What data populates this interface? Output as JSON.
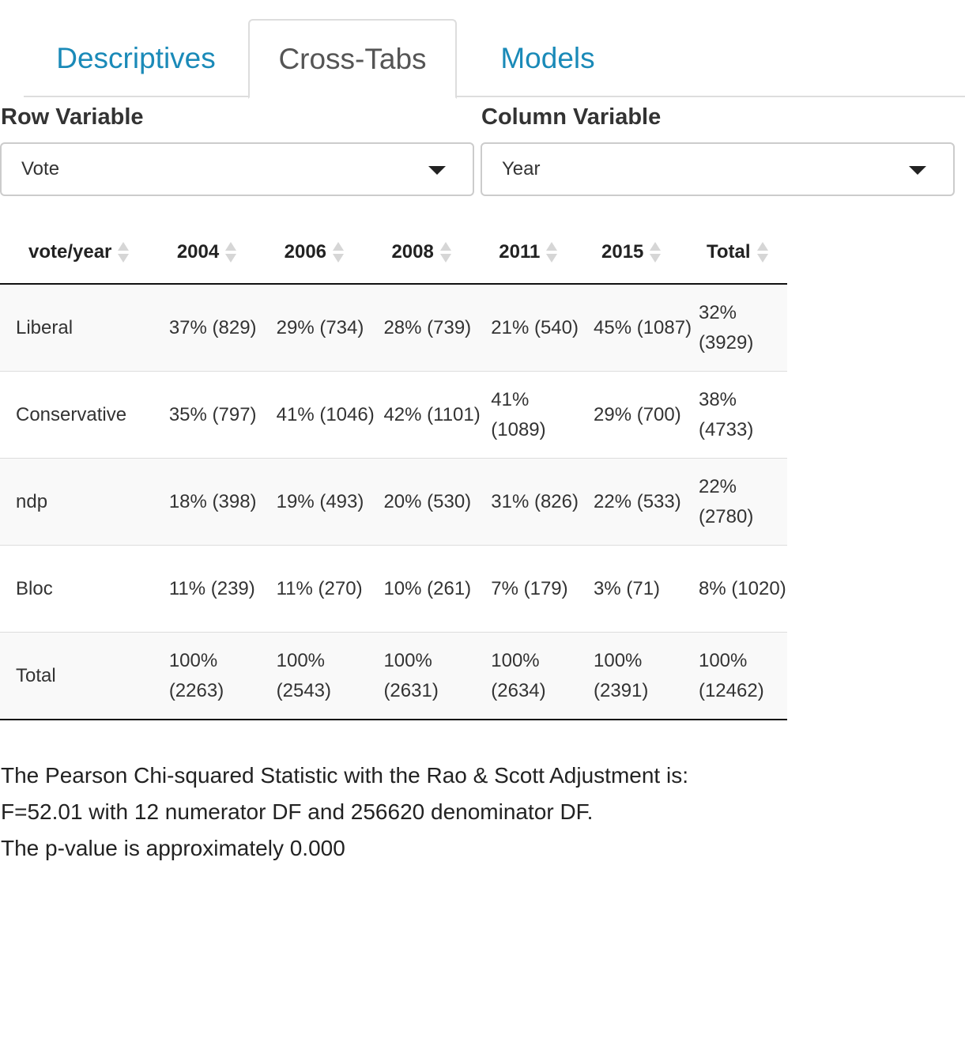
{
  "tabs": [
    {
      "label": "Descriptives",
      "active": false
    },
    {
      "label": "Cross-Tabs",
      "active": true
    },
    {
      "label": "Models",
      "active": false
    }
  ],
  "row_variable": {
    "label": "Row Variable",
    "value": "Vote"
  },
  "column_variable": {
    "label": "Column Variable",
    "value": "Year"
  },
  "table": {
    "headers": [
      "vote/year",
      "2004",
      "2006",
      "2008",
      "2011",
      "2015",
      "Total"
    ],
    "rows": [
      {
        "name": "Liberal",
        "cells": [
          "37% (829)",
          "29% (734)",
          "28% (739)",
          "21% (540)",
          "45% (1087)",
          "32% (3929)"
        ]
      },
      {
        "name": "Conservative",
        "cells": [
          "35% (797)",
          "41% (1046)",
          "42% (1101)",
          "41% (1089)",
          "29% (700)",
          "38% (4733)"
        ]
      },
      {
        "name": "ndp",
        "cells": [
          "18% (398)",
          "19% (493)",
          "20% (530)",
          "31% (826)",
          "22% (533)",
          "22% (2780)"
        ]
      },
      {
        "name": "Bloc",
        "cells": [
          "11% (239)",
          "11% (270)",
          "10% (261)",
          "7% (179)",
          "3% (71)",
          "8% (1020)"
        ]
      },
      {
        "name": "Total",
        "cells": [
          "100% (2263)",
          "100% (2543)",
          "100% (2631)",
          "100% (2634)",
          "100% (2391)",
          "100% (12462)"
        ]
      }
    ]
  },
  "stats": {
    "line1": "The Pearson Chi-squared Statistic with the Rao & Scott Adjustment is:",
    "line2": "F=52.01 with 12 numerator DF and 256620 denominator DF.",
    "line3": "The p-value is approximately 0.000"
  }
}
